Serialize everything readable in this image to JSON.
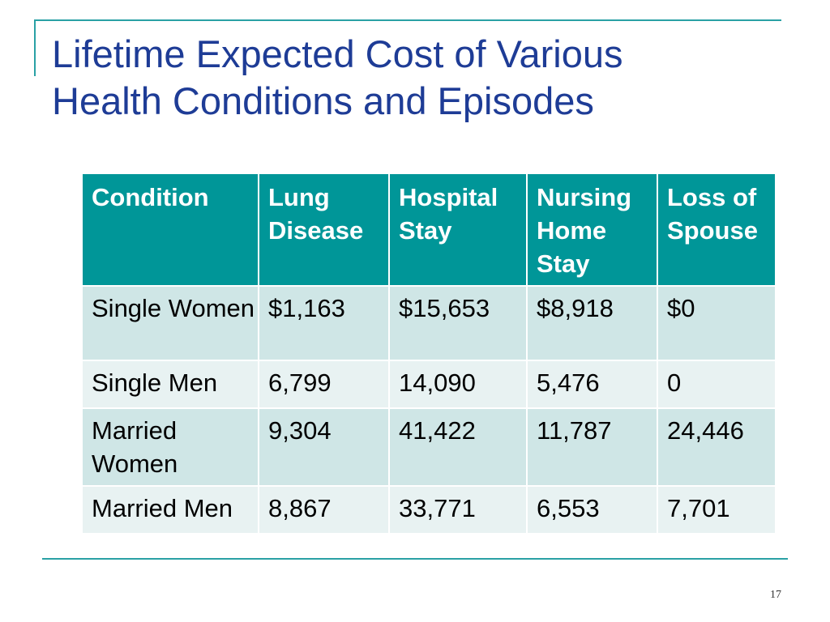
{
  "slide": {
    "title_line1": "Lifetime Expected Cost of Various",
    "title_line2": "Health Conditions and Episodes",
    "page_number": "17"
  },
  "table": {
    "headers": {
      "condition": "Condition",
      "lung_disease": "Lung Disease",
      "hospital_stay": "Hospital Stay",
      "nursing_home_stay": "Nursing Home Stay",
      "loss_of_spouse": "Loss of Spouse"
    },
    "rows": [
      [
        "Single Women",
        "$1,163",
        "$15,653",
        "$8,918",
        "$0"
      ],
      [
        "Single Men",
        "6,799",
        "14,090",
        "5,476",
        "0"
      ],
      [
        "Married Women",
        "9,304",
        "41,422",
        "11,787",
        "24,446"
      ],
      [
        "Married Men",
        "8,867",
        "33,771",
        "6,553",
        "7,701"
      ]
    ]
  },
  "colors": {
    "title": "#1e3c96",
    "accent_rule": "#2aa1a5",
    "header_fill": "#009698",
    "row_fill_dark": "#cfe6e6",
    "row_fill_light": "#e8f2f2"
  }
}
